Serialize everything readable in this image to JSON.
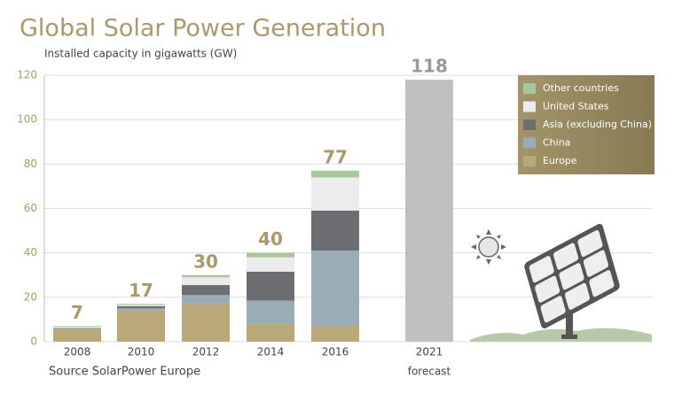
{
  "chart_data": {
    "type": "stacked_bar",
    "title": "Global Solar Power Generation",
    "subtitle": "Installed capacity in gigawatts (GW)",
    "source": "Source SolarPower Europe",
    "categories": [
      "2008",
      "2010",
      "2012",
      "2014",
      "2016",
      "2021"
    ],
    "forecast_label": "forecast",
    "series": [
      {
        "name": "Europe",
        "color": "#b9a878",
        "values": [
          5.5,
          14,
          17,
          8,
          7,
          null
        ]
      },
      {
        "name": "China",
        "color": "#9aacb6",
        "values": [
          0.2,
          1,
          4,
          10.5,
          34,
          null
        ]
      },
      {
        "name": "Asia (excluding China)",
        "color": "#6d6e71",
        "values": [
          0.3,
          1,
          4.5,
          13,
          18,
          null
        ]
      },
      {
        "name": "United States",
        "color": "#ececec",
        "values": [
          0.5,
          0.5,
          3.5,
          6.5,
          15,
          null
        ]
      },
      {
        "name": "Other countries",
        "color": "#a9c59b",
        "values": [
          0.5,
          0.5,
          1,
          2,
          3,
          null
        ]
      }
    ],
    "totals": [
      7,
      17,
      30,
      40,
      77
    ],
    "forecast_value": 118,
    "forecast_color": "#c0c0c0",
    "ylim": [
      0,
      120
    ],
    "yticks": [
      0,
      20,
      40,
      60,
      80,
      100,
      120
    ],
    "grid": true,
    "legend": "top-right"
  }
}
